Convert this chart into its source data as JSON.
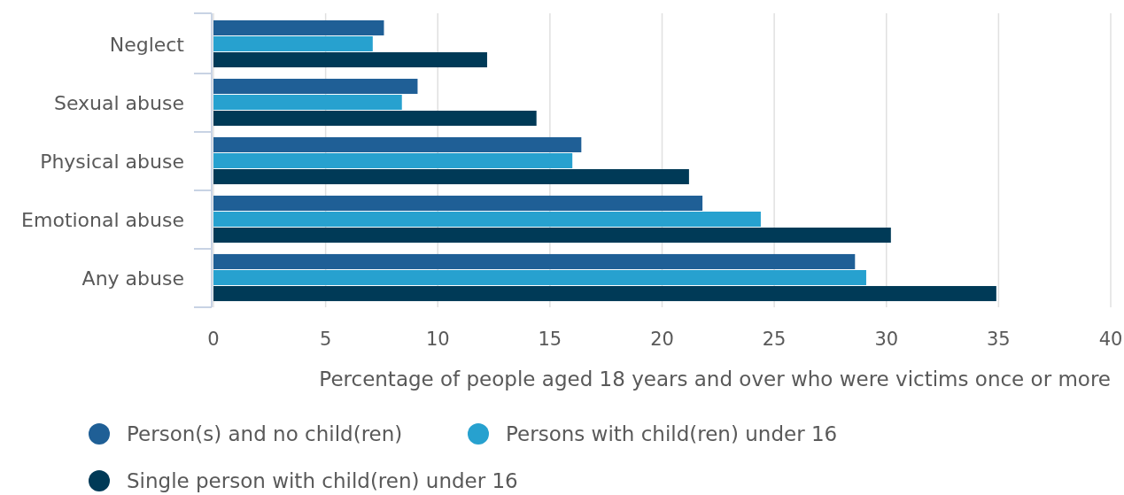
{
  "chart_data": {
    "type": "bar",
    "orientation": "horizontal",
    "categories": [
      "Neglect",
      "Sexual abuse",
      "Physical abuse",
      "Emotional abuse",
      "Any abuse"
    ],
    "series": [
      {
        "name": "Person(s) and no child(ren)",
        "color": "#1f5f96",
        "values": [
          7.6,
          9.1,
          16.4,
          21.8,
          28.6
        ]
      },
      {
        "name": "Persons with child(ren) under 16",
        "color": "#27a1cf",
        "values": [
          7.1,
          8.4,
          16.0,
          24.4,
          29.1
        ]
      },
      {
        "name": "Single person with child(ren) under 16",
        "color": "#003a57",
        "values": [
          12.2,
          14.4,
          21.2,
          30.2,
          34.9
        ]
      }
    ],
    "xlabel": "Percentage of people aged 18 years and over who were victims once or more",
    "xlim": [
      0,
      40
    ],
    "xticks": [
      0,
      5,
      10,
      15,
      20,
      25,
      30,
      35,
      40
    ],
    "grid": "x",
    "legend": "bottom"
  }
}
